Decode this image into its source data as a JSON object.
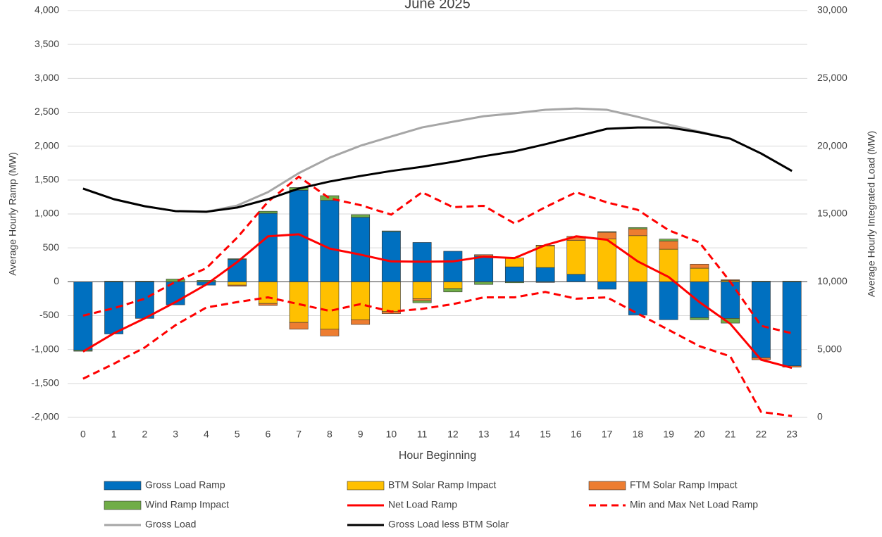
{
  "chart_data": {
    "type": "combo",
    "title": "June 2025",
    "x_label": "Hour Beginning",
    "y_label": "Average Hourly Ramp (MW)",
    "y2_label": "Average Hourly Integrated Load (MW)",
    "x": [
      0,
      1,
      2,
      3,
      4,
      5,
      6,
      7,
      8,
      9,
      10,
      11,
      12,
      13,
      14,
      15,
      16,
      17,
      18,
      19,
      20,
      21,
      22,
      23
    ],
    "xlim": [
      -0.5,
      23.5
    ],
    "ylim": [
      -2000,
      4000
    ],
    "yticks": [
      {
        "value": -2000,
        "label": "-2,000"
      },
      {
        "value": -1500,
        "label": "-1,500"
      },
      {
        "value": -1000,
        "label": "-1,000"
      },
      -500,
      0,
      500,
      {
        "value": 1000,
        "label": "1,000"
      },
      {
        "value": 1500,
        "label": "1,500"
      },
      {
        "value": 2000,
        "label": "2,000"
      },
      {
        "value": 2500,
        "label": "2,500"
      },
      {
        "value": 3000,
        "label": "3,000"
      },
      {
        "value": 3500,
        "label": "3,500"
      },
      {
        "value": 4000,
        "label": "4,000"
      }
    ],
    "y2lim": [
      0,
      30000
    ],
    "y2ticks": [
      0,
      {
        "value": 5000,
        "label": "5,000"
      },
      {
        "value": 10000,
        "label": "10,000"
      },
      {
        "value": 15000,
        "label": "15,000"
      },
      {
        "value": 20000,
        "label": "20,000"
      },
      {
        "value": 25000,
        "label": "25,000"
      },
      {
        "value": 30000,
        "label": "30,000"
      }
    ],
    "grid": true,
    "legend": "bottom",
    "series": [
      {
        "name": "Gross Load Ramp",
        "type": "bar",
        "color": "#0070c0",
        "values": [
          -1010,
          -770,
          -540,
          -340,
          -50,
          330,
          1010,
          1350,
          1200,
          950,
          740,
          580,
          450,
          380,
          220,
          210,
          110,
          -110,
          -490,
          -560,
          -530,
          -540,
          -1120,
          -1240
        ]
      },
      {
        "name": "BTM Solar Ramp Impact",
        "type": "bar",
        "color": "#ffc000",
        "values": [
          0,
          0,
          0,
          0,
          0,
          -50,
          -320,
          -600,
          -700,
          -560,
          -440,
          -250,
          -100,
          0,
          130,
          320,
          500,
          630,
          680,
          480,
          200,
          20,
          0,
          0
        ]
      },
      {
        "name": "FTM Solar Ramp Impact",
        "type": "bar",
        "color": "#ed7d31",
        "values": [
          0,
          0,
          0,
          0,
          0,
          -15,
          -30,
          -100,
          -100,
          -70,
          -30,
          -30,
          0,
          20,
          0,
          10,
          60,
          100,
          100,
          120,
          60,
          10,
          -30,
          -20
        ]
      },
      {
        "name": "Wind Ramp Impact",
        "type": "bar",
        "color": "#70ad47",
        "values": [
          -15,
          10,
          10,
          40,
          20,
          10,
          30,
          40,
          70,
          40,
          10,
          -30,
          -50,
          -40,
          -15,
          -10,
          0,
          10,
          20,
          30,
          -30,
          -70,
          10,
          10
        ]
      },
      {
        "name": "Net Load Ramp",
        "type": "line",
        "color": "#ff0000",
        "values": [
          -1030,
          -760,
          -540,
          -300,
          -40,
          290,
          670,
          700,
          490,
          400,
          300,
          295,
          300,
          370,
          350,
          540,
          670,
          620,
          300,
          70,
          -300,
          -620,
          -1150,
          -1270
        ]
      },
      {
        "name": "Min and Max Net Load Ramp",
        "type": "band-lines",
        "color": "#ff0000",
        "max": [
          -500,
          -390,
          -250,
          0,
          200,
          650,
          1180,
          1550,
          1230,
          1130,
          990,
          1320,
          1100,
          1120,
          860,
          1100,
          1320,
          1170,
          1060,
          760,
          580,
          0,
          -650,
          -760
        ],
        "min": [
          -1430,
          -1210,
          -970,
          -640,
          -380,
          -300,
          -230,
          -330,
          -430,
          -330,
          -440,
          -400,
          -330,
          -230,
          -230,
          -150,
          -250,
          -230,
          -470,
          -710,
          -950,
          -1100,
          -1920,
          -1980
        ]
      },
      {
        "name": "Gross Load",
        "type": "line",
        "axis": "y2",
        "color": "#a6a6a6",
        "values": [
          16870,
          16090,
          15570,
          15210,
          15160,
          15620,
          16610,
          18010,
          19150,
          20030,
          20710,
          21380,
          21800,
          22210,
          22420,
          22680,
          22780,
          22680,
          22160,
          21590,
          21070,
          20550,
          19460,
          18170
        ]
      },
      {
        "name": "Gross Load less BTM Solar",
        "type": "line",
        "axis": "y2",
        "color": "#000000",
        "values": [
          16870,
          16090,
          15570,
          15210,
          15160,
          15470,
          16090,
          16870,
          17390,
          17800,
          18170,
          18480,
          18840,
          19260,
          19620,
          20140,
          20710,
          21280,
          21380,
          21380,
          21020,
          20550,
          19460,
          18170
        ]
      }
    ]
  }
}
